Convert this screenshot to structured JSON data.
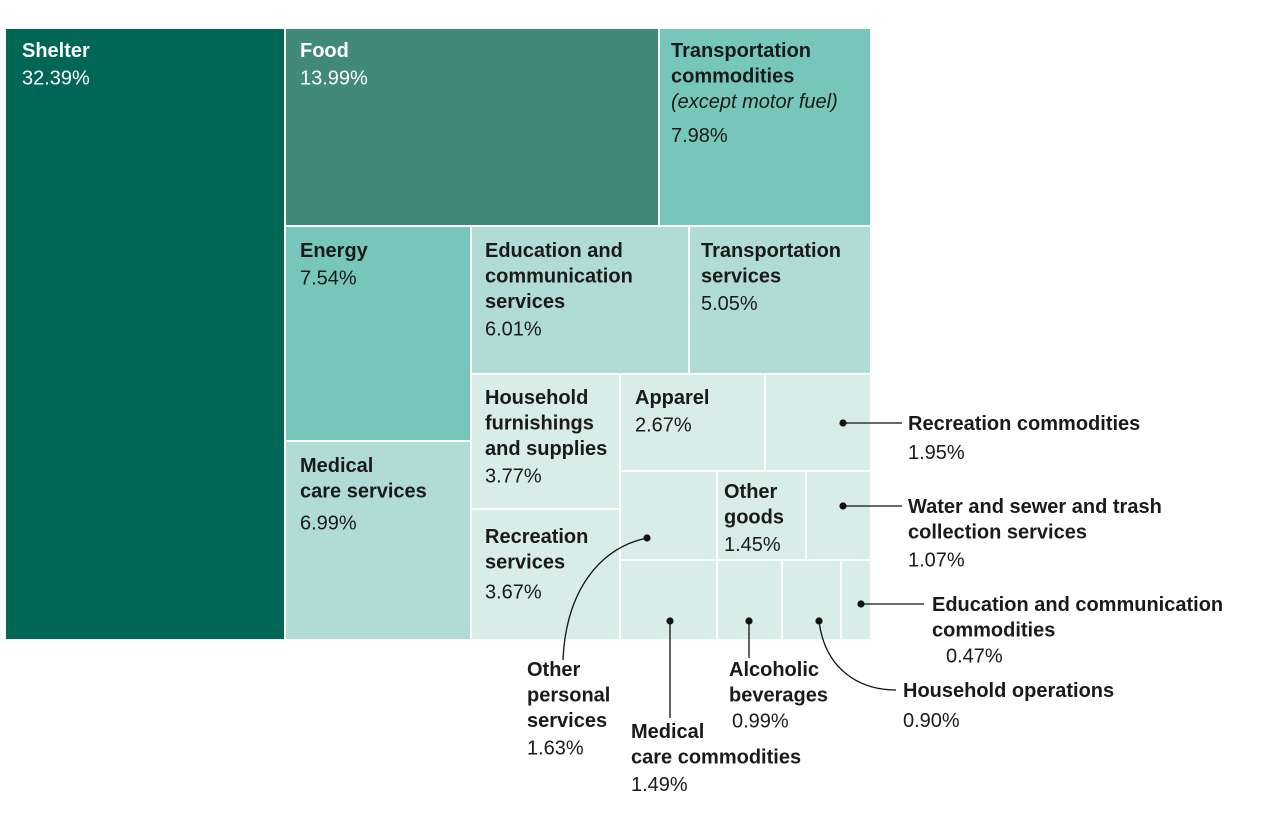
{
  "chart_data": {
    "type": "treemap",
    "colors": {
      "darkest": "#006655",
      "dark": "#41897b",
      "medium": "#77c6bb",
      "light": "#b1dcd5",
      "lightest": "#d8ece8",
      "text_dark": "#1a1a1a",
      "text_light": "#ffffff",
      "leader": "#111111"
    },
    "cells": [
      {
        "id": "shelter",
        "lines": [
          "Shelter"
        ],
        "value_label": "32.39%",
        "value": 32.39
      },
      {
        "id": "food",
        "lines": [
          "Food"
        ],
        "value_label": "13.99%",
        "value": 13.99
      },
      {
        "id": "transportation-commodities",
        "lines": [
          "Transportation",
          "commodities"
        ],
        "subtitle": "(except motor fuel)",
        "value_label": "7.98%",
        "value": 7.98
      },
      {
        "id": "energy",
        "lines": [
          "Energy"
        ],
        "value_label": "7.54%",
        "value": 7.54
      },
      {
        "id": "education-communication-services",
        "lines": [
          "Education and",
          "communication",
          "services"
        ],
        "value_label": "6.01%",
        "value": 6.01
      },
      {
        "id": "transportation-services",
        "lines": [
          "Transportation",
          "services"
        ],
        "value_label": "5.05%",
        "value": 5.05
      },
      {
        "id": "medical-care-services",
        "lines": [
          "Medical",
          "care services"
        ],
        "value_label": "6.99%",
        "value": 6.99
      },
      {
        "id": "household-furnishings",
        "lines": [
          "Household",
          "furnishings",
          "and supplies"
        ],
        "value_label": "3.77%",
        "value": 3.77
      },
      {
        "id": "apparel",
        "lines": [
          "Apparel"
        ],
        "value_label": "2.67%",
        "value": 2.67
      },
      {
        "id": "recreation-commodities",
        "lines": [
          "Recreation commodities"
        ],
        "value_label": "1.95%",
        "value": 1.95
      },
      {
        "id": "recreation-services",
        "lines": [
          "Recreation",
          "services"
        ],
        "value_label": "3.67%",
        "value": 3.67
      },
      {
        "id": "other-personal-services",
        "lines": [
          "Other",
          "personal",
          "services"
        ],
        "value_label": "1.63%",
        "value": 1.63
      },
      {
        "id": "other-goods",
        "lines": [
          "Other",
          "goods"
        ],
        "value_label": "1.45%",
        "value": 1.45
      },
      {
        "id": "water-sewer-trash",
        "lines": [
          "Water and sewer and trash",
          "collection services"
        ],
        "value_label": "1.07%",
        "value": 1.07
      },
      {
        "id": "medical-care-commodities",
        "lines": [
          "Medical",
          "care commodities"
        ],
        "value_label": "1.49%",
        "value": 1.49
      },
      {
        "id": "alcoholic-beverages",
        "lines": [
          "Alcoholic",
          "beverages"
        ],
        "value_label": "0.99%",
        "value": 0.99
      },
      {
        "id": "household-operations",
        "lines": [
          "Household operations"
        ],
        "value_label": "0.90%",
        "value": 0.9
      },
      {
        "id": "education-communication-commodities",
        "lines": [
          "Education and communication",
          "commodities"
        ],
        "value_label": "0.47%",
        "value": 0.47
      }
    ]
  }
}
